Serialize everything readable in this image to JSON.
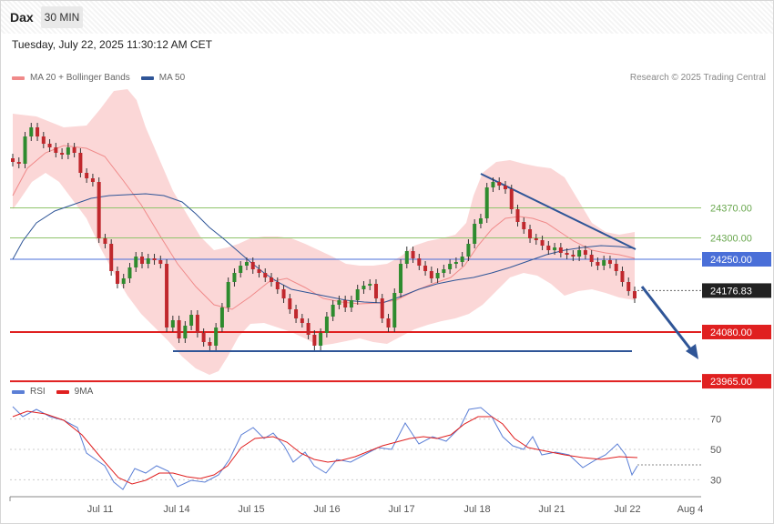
{
  "header": {
    "symbol": "Dax",
    "interval": "30 MIN"
  },
  "timestamp": "Tuesday, July 22, 2025 11:30:12 AM CET",
  "legend": {
    "items": [
      {
        "label": "MA 20 + Bollinger Bands",
        "color": "#f08a8a"
      },
      {
        "label": "MA 50",
        "color": "#2f5597"
      }
    ],
    "credit": "Research © 2025 Trading Central"
  },
  "rsi_legend": {
    "items": [
      {
        "label": "RSI",
        "color": "#5b7fd6"
      },
      {
        "label": "9MA",
        "color": "#e02020"
      }
    ]
  },
  "chart_data": [
    {
      "type": "candlestick",
      "name": "price",
      "x_ticks": [
        "Jul 11",
        "Jul 14",
        "Jul 15",
        "Jul 16",
        "Jul 17",
        "Jul 18",
        "Jul 21",
        "Jul 22",
        "Aug 4"
      ],
      "levels": [
        {
          "value": 24370.0,
          "label": "24370.00",
          "style": "resistance",
          "color": "#8fc46b"
        },
        {
          "value": 24300.0,
          "label": "24300.00",
          "style": "resistance",
          "color": "#8fc46b"
        },
        {
          "value": 24250.0,
          "label": "24250.00",
          "style": "pivot",
          "color": "#4a6fd8"
        },
        {
          "value": 24176.83,
          "label": "24176.83",
          "style": "last",
          "color": "#222222"
        },
        {
          "value": 24080.0,
          "label": "24080.00",
          "style": "support",
          "color": "#e02020"
        },
        {
          "value": 23965.0,
          "label": "23965.00",
          "style": "support",
          "color": "#e02020"
        }
      ],
      "indicators": [
        "MA 20 + Bollinger Bands",
        "MA 50"
      ]
    },
    {
      "type": "line",
      "name": "RSI",
      "y_ticks": [
        70,
        50,
        30
      ],
      "series": [
        {
          "name": "RSI",
          "color": "#5b7fd6"
        },
        {
          "name": "9MA",
          "color": "#e02020"
        }
      ]
    }
  ]
}
